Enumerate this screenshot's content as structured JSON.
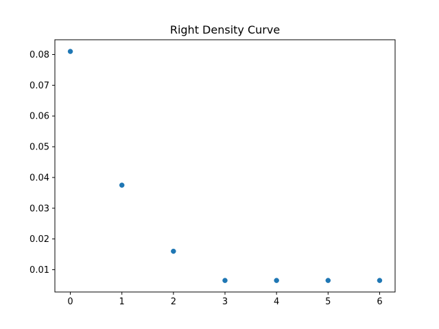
{
  "chart_data": {
    "type": "scatter",
    "title": "Right Density Curve",
    "xlabel": "",
    "ylabel": "",
    "x": [
      0,
      1,
      2,
      3,
      4,
      5,
      6
    ],
    "y": [
      0.081,
      0.0375,
      0.016,
      0.0065,
      0.0065,
      0.0065,
      0.0065
    ],
    "xlim": [
      -0.3,
      6.3
    ],
    "ylim": [
      0.00275,
      0.0848
    ],
    "xticks": [
      "0",
      "1",
      "2",
      "3",
      "4",
      "5",
      "6"
    ],
    "xtick_values": [
      0,
      1,
      2,
      3,
      4,
      5,
      6
    ],
    "yticks": [
      "0.01",
      "0.02",
      "0.03",
      "0.04",
      "0.05",
      "0.06",
      "0.07",
      "0.08"
    ],
    "ytick_values": [
      0.01,
      0.02,
      0.03,
      0.04,
      0.05,
      0.06,
      0.07,
      0.08
    ],
    "grid": false,
    "marker_color": "#1f77b4",
    "axes_color": "#000000"
  }
}
